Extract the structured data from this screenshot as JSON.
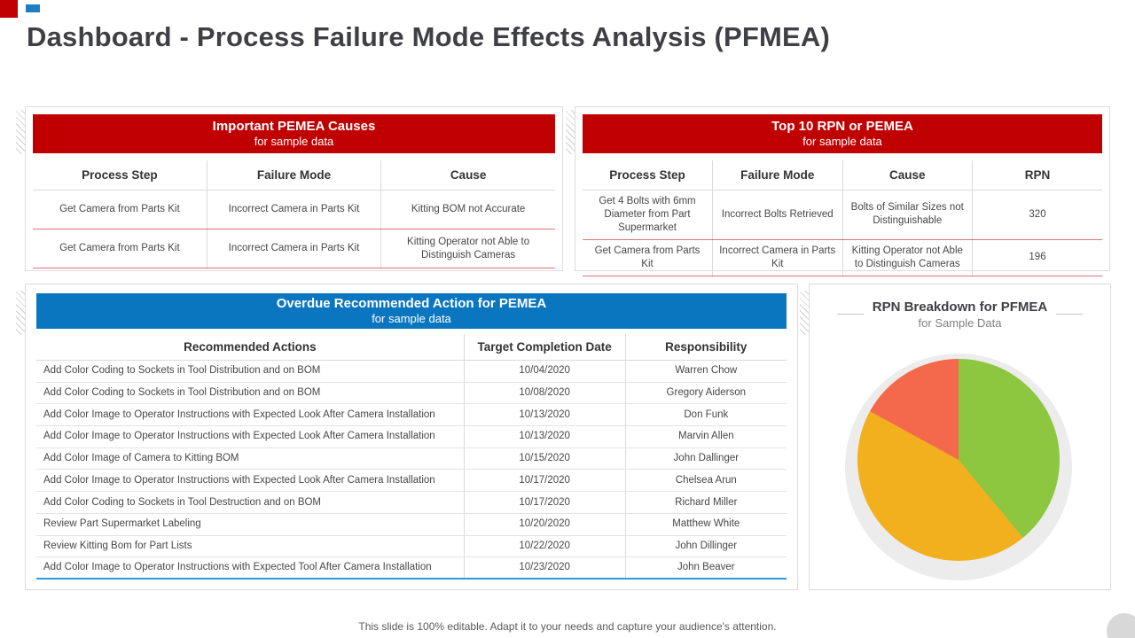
{
  "slide": {
    "title": "Dashboard - Process Failure Mode Effects Analysis (PFMEA)",
    "footer": "This slide is 100% editable. Adapt it to your needs and capture your audience's attention."
  },
  "colors": {
    "red_accent": "#C00000",
    "blue_accent": "#0B76C0",
    "title_text": "#3F3F46",
    "table_underline_red": "#C00000",
    "table_underline_blue": "#2E9BD8"
  },
  "causes_table": {
    "title": "Important PEMEA Causes",
    "subtitle": "for sample data",
    "columns": [
      "Process Step",
      "Failure Mode",
      "Cause"
    ],
    "rows": [
      [
        "Get Camera from Parts Kit",
        "Incorrect Camera in Parts Kit",
        "Kitting BOM not Accurate"
      ],
      [
        "Get Camera from Parts Kit",
        "Incorrect Camera in Parts Kit",
        "Kitting Operator not Able to Distinguish Cameras"
      ]
    ]
  },
  "rpn_table": {
    "title": "Top 10 RPN or PEMEA",
    "subtitle": "for sample data",
    "columns": [
      "Process Step",
      "Failure Mode",
      "Cause",
      "RPN"
    ],
    "rows": [
      [
        "Get 4 Bolts with 6mm Diameter from Part Supermarket",
        "Incorrect Bolts Retrieved",
        "Bolts of Similar Sizes not Distinguishable",
        "320"
      ],
      [
        "Get Camera from Parts Kit",
        "Incorrect Camera in Parts Kit",
        "Kitting Operator not Able to Distinguish Cameras",
        "196"
      ]
    ]
  },
  "overdue_table": {
    "title": "Overdue Recommended Action for PEMEA",
    "subtitle": "for sample data",
    "columns": [
      "Recommended Actions",
      "Target Completion Date",
      "Responsibility"
    ],
    "rows": [
      [
        "Add Color Coding to Sockets in Tool Distribution and on BOM",
        "10/04/2020",
        "Warren Chow"
      ],
      [
        "Add Color Coding to Sockets in Tool Distribution and on BOM",
        "10/08/2020",
        "Gregory Aiderson"
      ],
      [
        "Add Color Image to Operator Instructions with Expected Look After Camera Installation",
        "10/13/2020",
        "Don Funk"
      ],
      [
        "Add Color Image to Operator Instructions with Expected Look After Camera Installation",
        "10/13/2020",
        "Marvin Allen"
      ],
      [
        "Add Color Image of Camera to Kitting BOM",
        "10/15/2020",
        "John Dallinger"
      ],
      [
        "Add Color Image to Operator Instructions with Expected Look After Camera Installation",
        "10/17/2020",
        "Chelsea Arun"
      ],
      [
        "Add Color Coding to Sockets in Tool Destruction and on BOM",
        "10/17/2020",
        "Richard Miller"
      ],
      [
        "Review Part Supermarket Labeling",
        "10/20/2020",
        "Matthew White"
      ],
      [
        "Review Kitting Bom for Part Lists",
        "10/22/2020",
        "John Dillinger"
      ],
      [
        "Add Color Image to Operator Instructions with Expected Tool After Camera Installation",
        "10/23/2020",
        "John Beaver"
      ]
    ]
  },
  "chart_data": {
    "type": "pie",
    "title": "RPN Breakdown for PFMEA",
    "subtitle": "for Sample Data",
    "legend": false,
    "slices": [
      {
        "label": "green segment",
        "value": 39,
        "color": "#8DC63F"
      },
      {
        "label": "amber segment",
        "value": 44,
        "color": "#F2B01E"
      },
      {
        "label": "coral segment",
        "value": 17,
        "color": "#F4694B"
      }
    ]
  }
}
